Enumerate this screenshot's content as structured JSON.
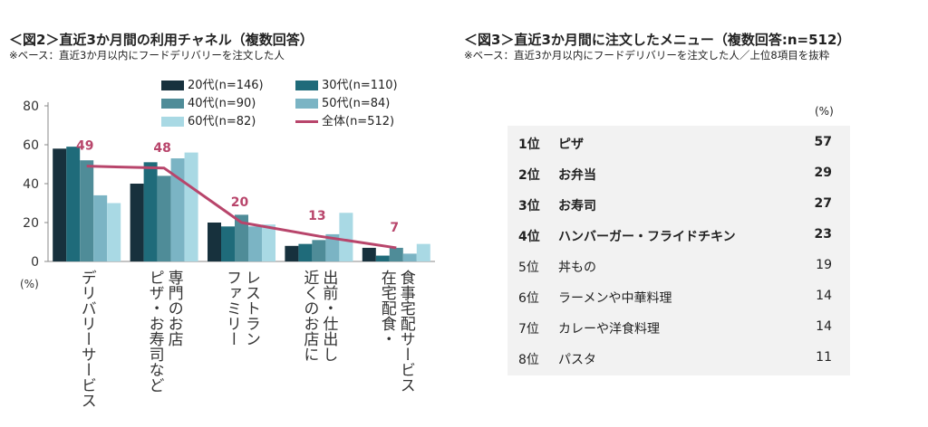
{
  "figure2": {
    "title": "＜図2＞直近3か月間の利用チャネル（複数回答）",
    "note": "※ベース：直近3か月以内にフードデリバリーを注文した人"
  },
  "figure3": {
    "title": "＜図3＞直近3か月間に注文したメニュー（複数回答:n=512）",
    "note": "※ベース：直近3か月以内にフードデリバリーを注文した人／上位8項目を抜粋",
    "unit": "(%)",
    "rows": [
      {
        "rank": "1位",
        "menu": "ピザ",
        "percent": "57",
        "bold": true
      },
      {
        "rank": "2位",
        "menu": "お弁当",
        "percent": "29",
        "bold": true
      },
      {
        "rank": "3位",
        "menu": "お寿司",
        "percent": "27",
        "bold": true
      },
      {
        "rank": "4位",
        "menu": "ハンバーガー・フライドチキン",
        "percent": "23",
        "bold": true
      },
      {
        "rank": "5位",
        "menu": "丼もの",
        "percent": "19",
        "bold": false
      },
      {
        "rank": "6位",
        "menu": "ラーメンや中華料理",
        "percent": "14",
        "bold": false
      },
      {
        "rank": "7位",
        "menu": "カレーや洋食料理",
        "percent": "14",
        "bold": false
      },
      {
        "rank": "8位",
        "menu": "パスタ",
        "percent": "11",
        "bold": false
      }
    ]
  },
  "chart_data": {
    "type": "bar",
    "title": "＜図2＞直近3か月間の利用チャネル（複数回答）",
    "ylabel": "(%)",
    "ylim": [
      0,
      80
    ],
    "yticks": [
      0,
      20,
      40,
      60,
      80
    ],
    "grid": false,
    "legend_position": "top-right",
    "categories": [
      "デリバリーサービス",
      "ピザ・お寿司など専門のお店",
      "ファミリーレストラン",
      "近くのお店に出前・仕出し",
      "在宅配食・食事宅配サービス"
    ],
    "category_lines": [
      [
        "デリバリーサービス"
      ],
      [
        "専門のお店",
        "ピザ・お寿司など"
      ],
      [
        "レストラン",
        "ファミリー"
      ],
      [
        "出前・仕出し",
        "近くのお店に"
      ],
      [
        "食事宅配サービス",
        "在宅配食・"
      ]
    ],
    "series": [
      {
        "name": "20代(n=146)",
        "color": "#17313d",
        "values": [
          58,
          40,
          20,
          8,
          7
        ]
      },
      {
        "name": "30代(n=110)",
        "color": "#1f6b7a",
        "values": [
          59,
          51,
          18,
          9,
          3
        ]
      },
      {
        "name": "40代(n=90)",
        "color": "#4f8c98",
        "values": [
          52,
          44,
          24,
          11,
          7
        ]
      },
      {
        "name": "50代(n=84)",
        "color": "#7bb4c4",
        "values": [
          34,
          53,
          18,
          14,
          4
        ]
      },
      {
        "name": "60代(n=82)",
        "color": "#a9d9e4",
        "values": [
          30,
          56,
          19,
          25,
          9
        ]
      }
    ],
    "line_series": {
      "name": "全体(n=512)",
      "color": "#b8456b",
      "values": [
        49,
        48,
        20,
        13,
        7
      ]
    }
  }
}
